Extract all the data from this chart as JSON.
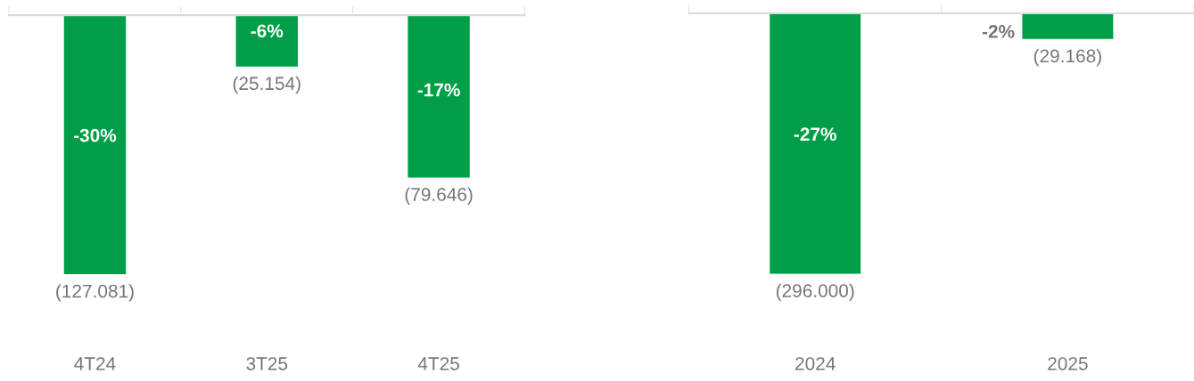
{
  "chart_data": [
    {
      "type": "bar",
      "categories": [
        "4T24",
        "3T25",
        "4T25"
      ],
      "values": [
        -127081,
        -25154,
        -79646
      ],
      "color": "#009e47",
      "value_labels": [
        "(127.081)",
        "(25.154)",
        "(79.646)"
      ],
      "annotations": [
        "-30%",
        "-6%",
        "-17%"
      ]
    },
    {
      "type": "bar",
      "categories": [
        "2024",
        "2025"
      ],
      "values": [
        -296000,
        -29168
      ],
      "color": "#009e47",
      "value_labels": [
        "(296.000)",
        "(29.168)"
      ],
      "annotations": [
        "-27%",
        "-2%"
      ]
    }
  ]
}
